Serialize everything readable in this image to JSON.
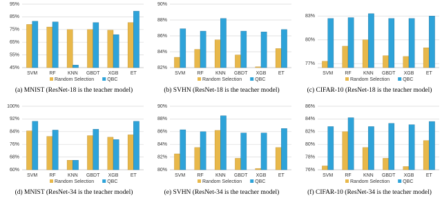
{
  "chart_data": [
    {
      "type": "bar",
      "caption": "(a) MNIST (ResNet-18 is the teacher model)",
      "categories": [
        "SVM",
        "RF",
        "KNN",
        "GBDT",
        "XGB",
        "ET"
      ],
      "series": [
        {
          "name": "Random Selection",
          "color": "#e8b84a",
          "values": [
            79,
            77,
            75,
            75,
            74.5,
            80.5
          ]
        },
        {
          "name": "QBC",
          "color": "#2ea3d9",
          "values": [
            81.5,
            81,
            47,
            80.5,
            71,
            89.5
          ]
        }
      ],
      "ylim": [
        45,
        95
      ],
      "yticks": [
        {
          "value": 45,
          "label": "45%"
        },
        {
          "value": 55,
          "label": "55%"
        },
        {
          "value": 65,
          "label": "65%"
        },
        {
          "value": 75,
          "label": "75%"
        },
        {
          "value": 85,
          "label": "85%"
        },
        {
          "value": 95,
          "label": "95%"
        }
      ],
      "grid": true,
      "legend": "bottom"
    },
    {
      "type": "bar",
      "caption": "(b) SVHN (ResNet-18 is the teacher model)",
      "categories": [
        "SVM",
        "RF",
        "KNN",
        "GBDT",
        "XGB",
        "ET"
      ],
      "series": [
        {
          "name": "Random Selection",
          "color": "#e8b84a",
          "values": [
            83.3,
            84.3,
            85.5,
            83.6,
            82.1,
            84.4
          ]
        },
        {
          "name": "QBC",
          "color": "#2ea3d9",
          "values": [
            86.9,
            86.6,
            88.2,
            86.6,
            86.5,
            86.8
          ]
        }
      ],
      "ylim": [
        82,
        90
      ],
      "yticks": [
        {
          "value": 82,
          "label": "82%"
        },
        {
          "value": 84,
          "label": "84%"
        },
        {
          "value": 86,
          "label": "86%"
        },
        {
          "value": 88,
          "label": "88%"
        },
        {
          "value": 90,
          "label": "90%"
        }
      ],
      "grid": true,
      "legend": "bottom"
    },
    {
      "type": "bar",
      "caption": "(c) CIFAR-10 (ResNet-18 is the teacher model)",
      "categories": [
        "SVM",
        "RF",
        "KNN",
        "GBDT",
        "XGB",
        "ET"
      ],
      "series": [
        {
          "name": "Random Selection",
          "color": "#e8b84a",
          "values": [
            77.3,
            79.2,
            80,
            78,
            77.9,
            79
          ]
        },
        {
          "name": "QBC",
          "color": "#2ea3d9",
          "values": [
            82.7,
            82.8,
            83.3,
            82.7,
            82.7,
            83
          ]
        }
      ],
      "ylim": [
        76.5,
        84.5
      ],
      "yticks": [
        {
          "value": 77,
          "label": "77%"
        },
        {
          "value": 80,
          "label": "80%"
        },
        {
          "value": 83,
          "label": "83%"
        }
      ],
      "grid": true,
      "legend": "bottom"
    },
    {
      "type": "bar",
      "caption": "(d) MNIST (ResNet-34 is the teacher model)",
      "categories": [
        "SVM",
        "RF",
        "KNN",
        "GBDT",
        "XGB",
        "ET"
      ],
      "series": [
        {
          "name": "Random Selection",
          "color": "#e8b84a",
          "values": [
            84.5,
            81,
            66,
            81.5,
            80.5,
            82
          ]
        },
        {
          "name": "QBC",
          "color": "#2ea3d9",
          "values": [
            90.5,
            85,
            66,
            85.5,
            79,
            90.5
          ]
        }
      ],
      "ylim": [
        60,
        100
      ],
      "yticks": [
        {
          "value": 60,
          "label": "60%"
        },
        {
          "value": 68,
          "label": "68%"
        },
        {
          "value": 76,
          "label": "76%"
        },
        {
          "value": 84,
          "label": "84%"
        },
        {
          "value": 92,
          "label": "92%"
        },
        {
          "value": 100,
          "label": "100%"
        }
      ],
      "grid": true,
      "legend": "bottom"
    },
    {
      "type": "bar",
      "caption": "(e) SVHN (ResNet-34 is the teacher model)",
      "categories": [
        "SVM",
        "RF",
        "KNN",
        "GBDT",
        "XGB",
        "ET"
      ],
      "series": [
        {
          "name": "Random Selection",
          "color": "#e8b84a",
          "values": [
            82.5,
            83.5,
            86.2,
            81.8,
            80.2,
            83.5
          ]
        },
        {
          "name": "QBC",
          "color": "#2ea3d9",
          "values": [
            86.3,
            86,
            88.5,
            85.8,
            85.8,
            86.5
          ]
        }
      ],
      "ylim": [
        80,
        90
      ],
      "yticks": [
        {
          "value": 80,
          "label": "80%"
        },
        {
          "value": 82,
          "label": "82%"
        },
        {
          "value": 84,
          "label": "84%"
        },
        {
          "value": 86,
          "label": "86%"
        },
        {
          "value": 88,
          "label": "88%"
        },
        {
          "value": 90,
          "label": "90%"
        }
      ],
      "grid": true,
      "legend": "bottom"
    },
    {
      "type": "bar",
      "caption": "(f) CIFAR-10 (ResNet-34 is the teacher model)",
      "categories": [
        "SVM",
        "RF",
        "KNN",
        "GBDT",
        "XGB",
        "ET"
      ],
      "series": [
        {
          "name": "Random Selection",
          "color": "#e8b84a",
          "values": [
            76.6,
            82,
            79.5,
            77.8,
            76.5,
            80.6
          ]
        },
        {
          "name": "QBC",
          "color": "#2ea3d9",
          "values": [
            82.8,
            84.2,
            82.8,
            83.3,
            83.1,
            83.6
          ]
        }
      ],
      "ylim": [
        76,
        86
      ],
      "yticks": [
        {
          "value": 76,
          "label": "76%"
        },
        {
          "value": 78,
          "label": "78%"
        },
        {
          "value": 80,
          "label": "80%"
        },
        {
          "value": 82,
          "label": "82%"
        },
        {
          "value": 84,
          "label": "84%"
        },
        {
          "value": 86,
          "label": "86%"
        }
      ],
      "grid": true,
      "legend": "bottom"
    }
  ]
}
